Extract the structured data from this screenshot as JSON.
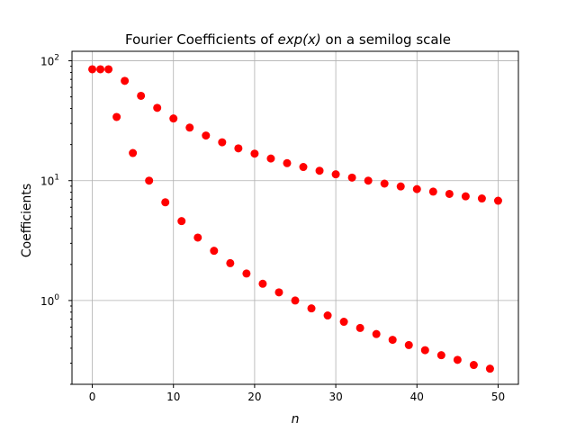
{
  "chart_data": {
    "type": "scatter",
    "title_prefix": "Fourier Coefficients of ",
    "title_math": "exp(x)",
    "title_suffix": " on a semilog scale",
    "xlabel": "n",
    "ylabel": "Coefficients",
    "xlim": [
      -2.5,
      52.5
    ],
    "ylim": [
      0.2,
      120
    ],
    "yscale": "log",
    "grid": true,
    "marker_color": "#ff0000",
    "x_ticks": [
      {
        "value": 0,
        "label": "0"
      },
      {
        "value": 10,
        "label": "10"
      },
      {
        "value": 20,
        "label": "20"
      },
      {
        "value": 30,
        "label": "30"
      },
      {
        "value": 40,
        "label": "40"
      },
      {
        "value": 50,
        "label": "50"
      }
    ],
    "y_ticks": [
      {
        "value": 1,
        "base": "10",
        "exp": "0"
      },
      {
        "value": 10,
        "base": "10",
        "exp": "1"
      },
      {
        "value": 100,
        "base": "10",
        "exp": "2"
      }
    ],
    "series": [
      {
        "x": [
          0,
          1,
          2,
          4,
          6,
          8,
          10,
          12,
          14,
          16,
          18,
          20,
          22,
          24,
          26,
          28,
          30,
          32,
          34,
          36,
          38,
          40,
          42,
          44,
          46,
          48,
          50
        ],
        "y": [
          85,
          85,
          85,
          68,
          51,
          40.5,
          33,
          27.7,
          23.8,
          20.9,
          18.6,
          16.8,
          15.3,
          14,
          13,
          12.1,
          11.3,
          10.6,
          10,
          9.45,
          8.95,
          8.5,
          8.1,
          7.75,
          7.4,
          7.1,
          6.8
        ]
      },
      {
        "x": [
          3,
          5,
          7,
          9,
          11,
          13,
          15,
          17,
          19,
          21,
          23,
          25,
          27,
          29,
          31,
          33,
          35,
          37,
          39,
          41,
          43,
          45,
          47,
          49
        ],
        "y": [
          34,
          17,
          10,
          6.6,
          4.6,
          3.35,
          2.6,
          2.05,
          1.68,
          1.38,
          1.17,
          1.0,
          0.86,
          0.75,
          0.665,
          0.59,
          0.525,
          0.47,
          0.425,
          0.385,
          0.35,
          0.32,
          0.29,
          0.27
        ]
      }
    ]
  }
}
